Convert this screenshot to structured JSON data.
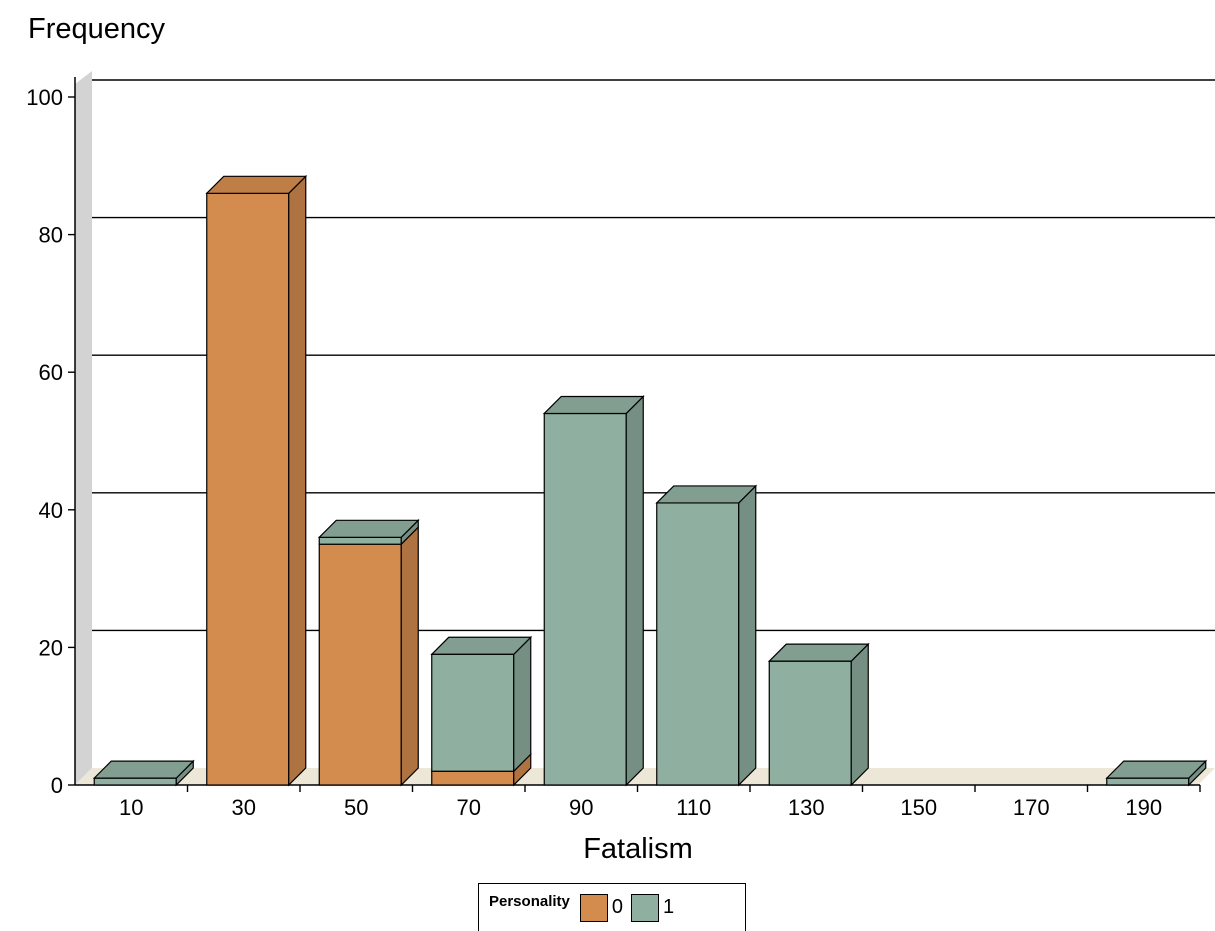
{
  "chart_data": {
    "type": "bar",
    "stacked": true,
    "title": "",
    "ylabel": "Frequency",
    "xlabel": "Fatalism",
    "categories": [
      "10",
      "30",
      "50",
      "70",
      "90",
      "110",
      "130",
      "150",
      "170",
      "190"
    ],
    "ylim": [
      0,
      100
    ],
    "yticks": [
      0,
      20,
      40,
      60,
      80,
      100
    ],
    "grid": true,
    "legend": {
      "title": "Personality",
      "placement": "bottom-center"
    },
    "series": [
      {
        "name": "0",
        "color": "#D48C4E",
        "values": [
          0,
          86,
          35,
          2,
          0,
          0,
          0,
          0,
          0,
          0
        ]
      },
      {
        "name": "1",
        "color": "#8FB0A0",
        "values": [
          1,
          0,
          1,
          17,
          54,
          41,
          18,
          0,
          0,
          1
        ]
      }
    ]
  }
}
